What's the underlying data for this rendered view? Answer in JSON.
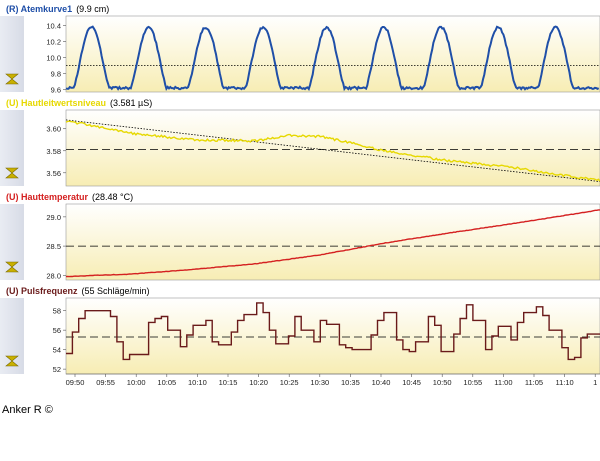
{
  "panels": [
    {
      "id": "atemkurve",
      "label": "(R) Atemkurve1",
      "value": "(9.9 cm)",
      "color": "#1f4fa8",
      "yticks": [
        "10.4",
        "10.2",
        "10.0",
        "9.8",
        "9.6"
      ],
      "ytick_values": [
        10.4,
        10.2,
        10.0,
        9.8,
        9.6
      ],
      "ylim": [
        9.57,
        10.52
      ],
      "ref_lines": [
        {
          "style": "dotted",
          "value": 9.9
        }
      ],
      "series_range": [
        9.62,
        10.38
      ],
      "peak_times": [
        "09:54",
        "10:03",
        "10:12",
        "10:21",
        "10:31",
        "10:40",
        "10:49",
        "10:58",
        "11:07"
      ]
    },
    {
      "id": "hautleitwert",
      "label": "(U) Hautleitwertsniveau",
      "value": "(3.581 µS)",
      "color": "#e6d800",
      "yticks": [
        "3.60",
        "3.58",
        "3.56"
      ],
      "ytick_values": [
        3.6,
        3.58,
        3.56
      ],
      "ylim": [
        3.548,
        3.617
      ],
      "ref_lines": [
        {
          "style": "dashed",
          "value": 3.581
        },
        {
          "style": "dotted-trend",
          "from": 3.608,
          "to": 3.552
        }
      ],
      "series": {
        "times": [
          "09:50",
          "09:55",
          "10:00",
          "10:10",
          "10:20",
          "10:25",
          "10:30",
          "10:35",
          "10:40",
          "10:50",
          "11:00",
          "11:15"
        ],
        "values": [
          3.607,
          3.602,
          3.596,
          3.59,
          3.589,
          3.594,
          3.593,
          3.587,
          3.58,
          3.571,
          3.565,
          3.552
        ]
      }
    },
    {
      "id": "hauttemperatur",
      "label": "(U) Hauttemperatur",
      "value": "(28.48 °C)",
      "color": "#d42020",
      "yticks": [
        "29.0",
        "28.5",
        "28.0"
      ],
      "ytick_values": [
        29.0,
        28.5,
        28.0
      ],
      "ylim": [
        27.92,
        29.22
      ],
      "ref_lines": [
        {
          "style": "dashed",
          "value": 28.5
        }
      ],
      "series": {
        "times": [
          "09:50",
          "10:00",
          "10:10",
          "10:20",
          "10:30",
          "10:40",
          "10:50",
          "11:00",
          "11:10",
          "11:15"
        ],
        "values": [
          27.98,
          28.02,
          28.1,
          28.2,
          28.35,
          28.55,
          28.72,
          28.88,
          29.05,
          29.14
        ]
      }
    },
    {
      "id": "pulsfrequenz",
      "label": "(U) Pulsfrequenz",
      "value": "(55 Schläge/min)",
      "color": "#6a1a1a",
      "yticks": [
        "58",
        "56",
        "54",
        "52"
      ],
      "ytick_values": [
        58,
        56,
        54,
        52
      ],
      "ylim": [
        51.5,
        59.3
      ],
      "ref_lines": [
        {
          "style": "dashed",
          "value": 55.3
        }
      ],
      "series": {
        "times": [
          "09:50",
          "09:51",
          "09:52",
          "09:53",
          "09:54",
          "09:57",
          "09:58",
          "09:59",
          "10:00",
          "10:03",
          "10:04",
          "10:05",
          "10:06",
          "10:08",
          "10:09",
          "10:10",
          "10:12",
          "10:13",
          "10:14",
          "10:16",
          "10:17",
          "10:18",
          "10:20",
          "10:21",
          "10:22",
          "10:23",
          "10:25",
          "10:26",
          "10:27",
          "10:29",
          "10:30",
          "10:31",
          "10:33",
          "10:34",
          "10:35",
          "10:38",
          "10:39",
          "10:40",
          "10:42",
          "10:43",
          "10:44",
          "10:45",
          "10:47",
          "10:48",
          "10:49",
          "10:51",
          "10:52",
          "10:53",
          "10:54",
          "10:56",
          "10:57",
          "10:58",
          "11:00",
          "11:01",
          "11:02",
          "11:04",
          "11:05",
          "11:06",
          "11:08",
          "11:09",
          "11:10",
          "11:11",
          "11:12"
        ],
        "values": [
          53.6,
          55.8,
          57.2,
          58.0,
          58.0,
          57.4,
          54.8,
          53.0,
          53.5,
          56.8,
          57.2,
          57.4,
          56.0,
          54.3,
          55.5,
          56.5,
          57.0,
          54.8,
          54.5,
          55.8,
          57.0,
          57.6,
          58.8,
          57.8,
          56.0,
          54.6,
          55.4,
          57.4,
          56.0,
          54.8,
          57.0,
          56.6,
          54.5,
          54.2,
          54.0,
          55.5,
          57.0,
          57.8,
          55.0,
          54.0,
          53.8,
          54.8,
          57.4,
          56.5,
          53.8,
          55.6,
          57.2,
          58.6,
          57.0,
          54.0,
          55.4,
          56.4,
          55.0,
          56.8,
          57.8,
          58.4,
          57.5,
          56.0,
          54.2,
          53.0,
          53.2,
          55.2,
          55.6
        ]
      }
    }
  ],
  "x_axis": {
    "ticks": [
      "09:50",
      "09:55",
      "10:00",
      "10:05",
      "10:10",
      "10:15",
      "10:20",
      "10:25",
      "10:30",
      "10:35",
      "10:40",
      "10:45",
      "10:50",
      "10:55",
      "11:00",
      "11:05",
      "11:10",
      "1"
    ]
  },
  "credit": "Anker R ©"
}
